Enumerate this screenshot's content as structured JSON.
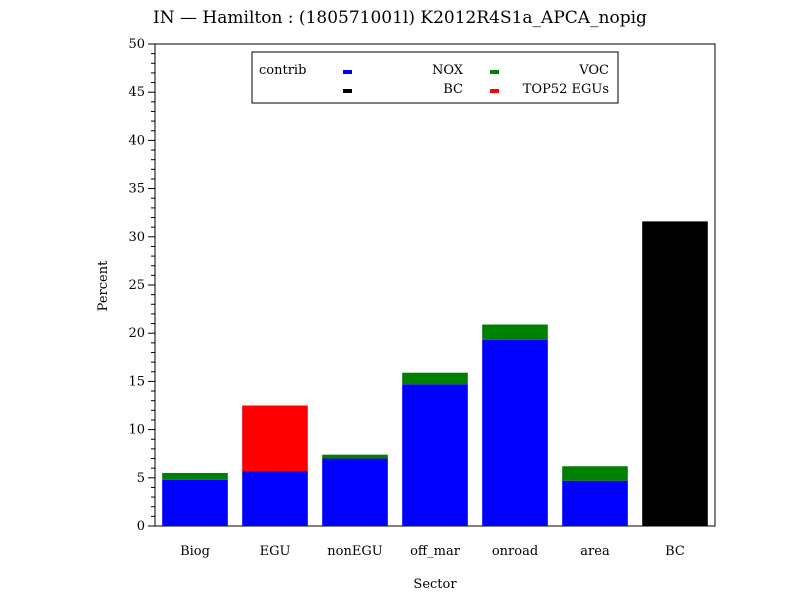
{
  "chart_data": {
    "type": "bar",
    "stacked": true,
    "title": "IN  —  Hamilton : (180571001l) K2012R4S1a_APCA_nopig",
    "xlabel": "Sector",
    "ylabel": "Percent",
    "ylim": [
      0,
      50
    ],
    "y_major_ticks": [
      0,
      5,
      10,
      15,
      20,
      25,
      30,
      35,
      40,
      45,
      50
    ],
    "categories": [
      "Biog",
      "EGU",
      "nonEGU",
      "off_mar",
      "onroad",
      "area",
      "BC"
    ],
    "series": [
      {
        "name": "NOX",
        "color": "#0000ff",
        "values": [
          4.8,
          5.7,
          7.0,
          14.7,
          19.3,
          4.7,
          0
        ]
      },
      {
        "name": "VOC",
        "color": "#008000",
        "values": [
          0.7,
          0,
          0.4,
          1.2,
          1.6,
          1.5,
          0
        ]
      },
      {
        "name": "BC",
        "color": "#000000",
        "values": [
          0,
          0,
          0,
          0,
          0,
          0,
          31.6
        ]
      },
      {
        "name": "TOP52 EGUs",
        "color": "#ff0000",
        "values": [
          0,
          6.8,
          0,
          0,
          0,
          0,
          0
        ]
      }
    ],
    "legend": {
      "title": "contrib",
      "placement": "top-center inside plot",
      "order": [
        "NOX",
        "VOC",
        "BC",
        "TOP52 EGUs"
      ]
    },
    "grid": false
  }
}
